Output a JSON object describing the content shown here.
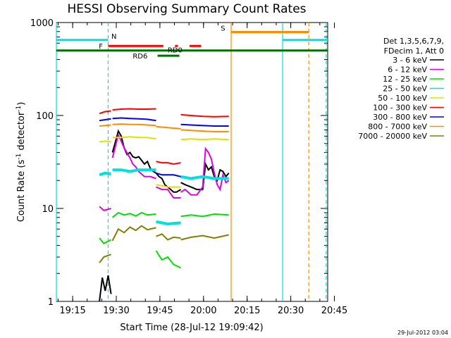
{
  "chart_data": {
    "type": "line",
    "title": "HESSI Observing Summary Count Rates",
    "xlabel": "Start Time (28-Jul-12 19:09:42)",
    "ylabel_main": "Count Rate (s",
    "ylabel_exp1": "-1",
    "ylabel_mid": " detector",
    "ylabel_exp2": "-1",
    "ylabel_end": ")",
    "ylog": true,
    "ylim": [
      1,
      1000
    ],
    "xlim_min": [
      9.7,
      103
    ],
    "xtick_labels": [
      {
        "t": 15.3,
        "label": "19:15"
      },
      {
        "t": 30.3,
        "label": "19:30"
      },
      {
        "t": 45.3,
        "label": "19:45"
      },
      {
        "t": 60.3,
        "label": "20:00"
      },
      {
        "t": 75.3,
        "label": "20:15"
      },
      {
        "t": 90.3,
        "label": "20:30"
      },
      {
        "t": 105.3,
        "label": "20:45"
      }
    ],
    "ytick_labels": [
      {
        "v": 1,
        "label": "1"
      },
      {
        "v": 10,
        "label": "10"
      },
      {
        "v": 100,
        "label": "100"
      },
      {
        "v": 1000,
        "label": "1000"
      }
    ],
    "legend_header": [
      "Det 1,3,5,6,7,9,",
      "FDecim 1, Att 0"
    ],
    "legend_position": "right",
    "series": [
      {
        "name": "3 - 6 keV",
        "color": "#000000",
        "segments": [
          [
            [
              24.5,
              1.0
            ],
            [
              25.5,
              1.8
            ],
            [
              26.5,
              1.3
            ],
            [
              27.5,
              1.9
            ],
            [
              28.5,
              1.2
            ]
          ],
          [
            [
              29.0,
              40
            ],
            [
              30.0,
              52
            ],
            [
              31.0,
              68
            ],
            [
              32.0,
              60
            ],
            [
              33.0,
              45
            ],
            [
              34.0,
              38
            ],
            [
              35.0,
              40
            ],
            [
              36.0,
              36
            ],
            [
              37.0,
              35
            ],
            [
              38.0,
              36
            ],
            [
              39.0,
              33
            ],
            [
              40.0,
              30
            ],
            [
              41.0,
              32
            ],
            [
              42.0,
              27
            ],
            [
              43.0,
              25
            ],
            [
              44.0,
              24
            ]
          ],
          [
            [
              44.0,
              24
            ],
            [
              45.0,
              22
            ],
            [
              46.0,
              21
            ],
            [
              47.0,
              18
            ],
            [
              48.0,
              17
            ],
            [
              49.0,
              16
            ],
            [
              50.0,
              15
            ],
            [
              51.0,
              15
            ],
            [
              52.5,
              16
            ]
          ],
          [
            [
              52.5,
              19
            ],
            [
              54.0,
              18
            ],
            [
              56.0,
              17
            ],
            [
              58.0,
              16
            ],
            [
              60.0,
              16
            ],
            [
              61.0,
              30
            ],
            [
              62.0,
              26
            ],
            [
              63.0,
              28
            ],
            [
              64.0,
              22
            ],
            [
              65.0,
              20
            ],
            [
              66.0,
              26
            ],
            [
              67.0,
              25
            ],
            [
              68.0,
              22
            ],
            [
              69.0,
              24
            ]
          ]
        ]
      },
      {
        "name": "6 - 12 keV",
        "color": "#e000e0",
        "segments": [
          [
            [
              24.5,
              10.5
            ],
            [
              26.0,
              9.5
            ],
            [
              28.5,
              10.0
            ]
          ],
          [
            [
              29.0,
              35
            ],
            [
              31.0,
              62
            ],
            [
              33.0,
              45
            ],
            [
              35.0,
              35
            ],
            [
              36.0,
              30
            ],
            [
              37.0,
              28
            ],
            [
              38.0,
              25
            ],
            [
              40.0,
              22
            ],
            [
              42.0,
              22
            ],
            [
              44.0,
              21
            ]
          ],
          [
            [
              44.0,
              17
            ],
            [
              46.0,
              16
            ],
            [
              48.0,
              16
            ],
            [
              50.0,
              13
            ],
            [
              52.5,
              13
            ]
          ],
          [
            [
              52.5,
              15
            ],
            [
              54.0,
              16
            ],
            [
              56.0,
              14
            ],
            [
              58.0,
              14
            ],
            [
              60.0,
              17
            ],
            [
              61.0,
              44
            ],
            [
              62.0,
              40
            ],
            [
              63.0,
              34
            ],
            [
              64.0,
              24
            ],
            [
              65.0,
              18
            ],
            [
              66.0,
              16
            ],
            [
              67.0,
              23
            ],
            [
              68.0,
              19
            ],
            [
              69.0,
              20
            ]
          ]
        ]
      },
      {
        "name": "12 - 25 keV",
        "color": "#00e000",
        "segments": [
          [
            [
              24.5,
              4.8
            ],
            [
              26.0,
              4.2
            ],
            [
              28.5,
              4.6
            ]
          ],
          [
            [
              29.0,
              8
            ],
            [
              31.0,
              9
            ],
            [
              33.0,
              8.5
            ],
            [
              35.0,
              8.8
            ],
            [
              37.0,
              8.3
            ],
            [
              39.0,
              9.0
            ],
            [
              41.0,
              8.5
            ],
            [
              44.0,
              8.7
            ]
          ],
          [
            [
              44.0,
              3.5
            ],
            [
              46.0,
              2.8
            ],
            [
              48.0,
              3.0
            ],
            [
              50.0,
              2.5
            ],
            [
              52.5,
              2.3
            ]
          ],
          [
            [
              52.5,
              8.2
            ],
            [
              56.0,
              8.5
            ],
            [
              60.0,
              8.2
            ],
            [
              64.0,
              8.7
            ],
            [
              69.0,
              8.5
            ]
          ]
        ]
      },
      {
        "name": "25 - 50 keV",
        "color": "#00e0e0",
        "segments": [
          [
            [
              24.5,
              23
            ],
            [
              26.5,
              24
            ],
            [
              28.5,
              23.5
            ]
          ],
          [
            [
              29.0,
              26
            ],
            [
              32.0,
              26
            ],
            [
              35.0,
              25
            ],
            [
              38.0,
              26
            ],
            [
              41.0,
              26
            ],
            [
              44.0,
              26
            ]
          ],
          [
            [
              44.0,
              7.2
            ],
            [
              46.0,
              7.0
            ],
            [
              48.0,
              6.8
            ],
            [
              50.0,
              6.9
            ],
            [
              52.5,
              7.0
            ]
          ],
          [
            [
              52.5,
              22
            ],
            [
              56.0,
              21
            ],
            [
              60.0,
              22
            ],
            [
              64.0,
              21
            ],
            [
              69.0,
              21
            ]
          ]
        ]
      },
      {
        "name": "50 - 100 keV",
        "color": "#e0e000",
        "segments": [
          [
            [
              24.5,
              52
            ],
            [
              26.5,
              53
            ],
            [
              28.5,
              52
            ]
          ],
          [
            [
              29.0,
              58
            ],
            [
              32.0,
              58
            ],
            [
              35.0,
              59
            ],
            [
              38.0,
              58
            ],
            [
              41.0,
              58
            ],
            [
              44.0,
              56
            ]
          ],
          [
            [
              44.0,
              18
            ],
            [
              46.0,
              17.5
            ],
            [
              48.0,
              17
            ],
            [
              50.0,
              17
            ],
            [
              52.5,
              17
            ]
          ],
          [
            [
              52.5,
              55
            ],
            [
              56.0,
              56
            ],
            [
              60.0,
              55
            ],
            [
              64.0,
              56
            ],
            [
              69.0,
              55
            ]
          ]
        ]
      },
      {
        "name": "100 - 300 keV",
        "color": "#ff0000",
        "segments": [
          [
            [
              24.5,
              105
            ],
            [
              26.5,
              110
            ],
            [
              28.5,
              112
            ]
          ],
          [
            [
              29.0,
              115
            ],
            [
              32.0,
              117
            ],
            [
              35.0,
              118
            ],
            [
              38.0,
              117
            ],
            [
              41.0,
              117
            ],
            [
              44.0,
              118
            ]
          ],
          [
            [
              44.0,
              32
            ],
            [
              46.0,
              31
            ],
            [
              48.0,
              31
            ],
            [
              50.0,
              30
            ],
            [
              52.5,
              31
            ]
          ],
          [
            [
              52.5,
              102
            ],
            [
              56.0,
              100
            ],
            [
              60.0,
              98
            ],
            [
              64.0,
              97
            ],
            [
              69.0,
              98
            ]
          ]
        ]
      },
      {
        "name": "300 - 800 keV",
        "color": "#0000ff",
        "segments": [
          [
            [
              24.5,
              88
            ],
            [
              26.5,
              90
            ],
            [
              28.5,
              92
            ]
          ],
          [
            [
              29.0,
              93
            ],
            [
              32.0,
              94
            ],
            [
              35.0,
              93
            ],
            [
              38.0,
              92
            ],
            [
              41.0,
              91
            ],
            [
              44.0,
              88
            ]
          ],
          [
            [
              44.0,
              24
            ],
            [
              46.0,
              23
            ],
            [
              48.0,
              23
            ],
            [
              50.0,
              23
            ],
            [
              52.5,
              22
            ]
          ],
          [
            [
              52.5,
              80
            ],
            [
              56.0,
              79
            ],
            [
              60.0,
              78
            ],
            [
              64.0,
              77
            ],
            [
              69.0,
              77
            ]
          ]
        ]
      },
      {
        "name": "800 - 7000 keV",
        "color": "#ff8c00",
        "segments": [
          [
            [
              24.5,
              77
            ],
            [
              26.5,
              78
            ],
            [
              28.5,
              79
            ]
          ],
          [
            [
              29.0,
              80
            ],
            [
              32.0,
              81
            ],
            [
              35.0,
              80
            ],
            [
              38.0,
              80
            ],
            [
              41.0,
              79
            ],
            [
              44.0,
              78
            ]
          ],
          [
            [
              44.0,
              76
            ],
            [
              46.0,
              75
            ],
            [
              48.0,
              74
            ],
            [
              50.0,
              73
            ],
            [
              52.5,
              72
            ]
          ],
          [
            [
              52.5,
              70
            ],
            [
              56.0,
              69
            ],
            [
              60.0,
              68
            ],
            [
              64.0,
              67
            ],
            [
              69.0,
              67
            ]
          ]
        ]
      },
      {
        "name": "7000 - 20000 keV",
        "color": "#808000",
        "segments": [
          [
            [
              24.5,
              2.6
            ],
            [
              26.0,
              3.0
            ],
            [
              28.5,
              3.2
            ]
          ],
          [
            [
              29.0,
              4.5
            ],
            [
              31.0,
              6.0
            ],
            [
              33.0,
              5.5
            ],
            [
              35.0,
              6.3
            ],
            [
              37.0,
              5.8
            ],
            [
              39.0,
              6.5
            ],
            [
              41.0,
              5.9
            ],
            [
              44.0,
              6.2
            ]
          ],
          [
            [
              44.0,
              5.0
            ],
            [
              46.0,
              5.3
            ],
            [
              48.0,
              4.6
            ],
            [
              50.0,
              4.9
            ],
            [
              52.5,
              4.8
            ]
          ],
          [
            [
              52.5,
              4.6
            ],
            [
              56.0,
              4.9
            ],
            [
              60.0,
              5.1
            ],
            [
              64.0,
              4.8
            ],
            [
              69.0,
              5.2
            ]
          ]
        ]
      }
    ],
    "time_lines": [
      {
        "t": 9.7,
        "color": "#00e0e0",
        "style": "solid"
      },
      {
        "t": 27.5,
        "color": "#00e0e0",
        "style": "dashed"
      },
      {
        "t": 69.8,
        "color": "#ff8c00",
        "style": "solid"
      },
      {
        "t": 87.5,
        "color": "#00e0e0",
        "style": "solid"
      },
      {
        "t": 96.5,
        "color": "#ff8c00",
        "style": "dashed"
      },
      {
        "t": 102.5,
        "color": "#00e0e0",
        "style": "dashed"
      }
    ],
    "flag_bars": [
      {
        "label": "N",
        "color": "#00e0e0",
        "label_color": "#00e0e0",
        "level": 650,
        "spans": [
          [
            9.7,
            27.5
          ],
          [
            87.5,
            103
          ]
        ],
        "label_at": 29.5,
        "label_level": 720
      },
      {
        "label": "F",
        "color": "#ff0000",
        "label_color": "#ff0000",
        "level": 560,
        "spans": [
          [
            27.5,
            46.5
          ],
          [
            50.5,
            51.5
          ],
          [
            55.5,
            59.5
          ]
        ],
        "label_at": 25.0,
        "label_level": 560
      },
      {
        "label": "S",
        "color": "#ff8c00",
        "label_color": "#ff8c00",
        "level": 790,
        "spans": [
          [
            69.8,
            96.5
          ]
        ],
        "label_at": 67.0,
        "label_level": 880
      },
      {
        "label": "RD0",
        "color": "#007000",
        "label_color": "#007000",
        "level": 500,
        "spans": [
          [
            9.7,
            103
          ]
        ],
        "label_at": 50.5,
        "label_level": 510
      },
      {
        "label": "RD6",
        "color": "#007000",
        "label_color": "#007000",
        "level": 440,
        "spans": [
          [
            44.5,
            52.0
          ]
        ],
        "label_at": 38.5,
        "label_level": 440
      }
    ]
  },
  "footer": {
    "date": "29-Jul-2012 03:04"
  }
}
